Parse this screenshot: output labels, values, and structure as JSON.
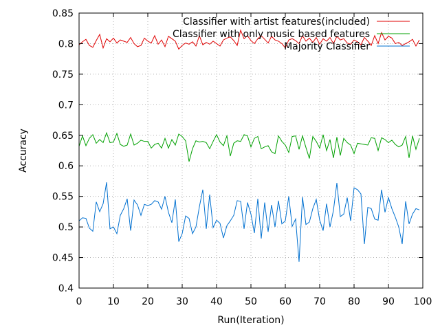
{
  "chart_data": {
    "type": "line",
    "title": "",
    "xlabel": "Run(Iteration)",
    "ylabel": "Accuracy",
    "xlim": [
      0,
      100
    ],
    "ylim": [
      0.4,
      0.85
    ],
    "xticks": [
      0,
      10,
      20,
      30,
      40,
      50,
      60,
      70,
      80,
      90,
      100
    ],
    "yticks": [
      0.4,
      0.45,
      0.5,
      0.55,
      0.6,
      0.65,
      0.7,
      0.75,
      0.8,
      0.85
    ],
    "xtick_labels": [
      "0",
      "10",
      "20",
      "30",
      "40",
      "50",
      "60",
      "70",
      "80",
      "90",
      "100"
    ],
    "ytick_labels": [
      "0.4",
      "0.45",
      "0.5",
      "0.55",
      "0.6",
      "0.65",
      "0.7",
      "0.75",
      "0.8",
      "0.85"
    ],
    "grid": true,
    "legend_position": "top-right",
    "series": [
      {
        "name": "Classifier with artist features(included)",
        "color": "#e00000",
        "x": [
          0,
          1,
          2,
          3,
          4,
          5,
          6,
          7,
          8,
          9,
          10,
          11,
          12,
          13,
          14,
          15,
          16,
          17,
          18,
          19,
          20,
          21,
          22,
          23,
          24,
          25,
          26,
          27,
          28,
          29,
          30,
          31,
          32,
          33,
          34,
          35,
          36,
          37,
          38,
          39,
          40,
          41,
          42,
          43,
          44,
          45,
          46,
          47,
          48,
          49,
          50,
          51,
          52,
          53,
          54,
          55,
          56,
          57,
          58,
          59,
          60,
          61,
          62,
          63,
          64,
          65,
          66,
          67,
          68,
          69,
          70,
          71,
          72,
          73,
          74,
          75,
          76,
          77,
          78,
          79,
          80,
          81,
          82,
          83,
          84,
          85,
          86,
          87,
          88,
          89,
          90,
          91,
          92,
          93,
          94,
          95,
          96,
          97,
          98,
          99
        ],
        "values": [
          0.798,
          0.803,
          0.807,
          0.797,
          0.794,
          0.805,
          0.815,
          0.793,
          0.808,
          0.803,
          0.809,
          0.801,
          0.806,
          0.804,
          0.802,
          0.81,
          0.8,
          0.795,
          0.797,
          0.809,
          0.804,
          0.801,
          0.813,
          0.799,
          0.806,
          0.795,
          0.812,
          0.808,
          0.804,
          0.791,
          0.797,
          0.801,
          0.799,
          0.803,
          0.796,
          0.813,
          0.798,
          0.802,
          0.799,
          0.804,
          0.8,
          0.796,
          0.806,
          0.809,
          0.811,
          0.805,
          0.797,
          0.822,
          0.808,
          0.813,
          0.805,
          0.8,
          0.808,
          0.813,
          0.807,
          0.801,
          0.812,
          0.806,
          0.804,
          0.8,
          0.793,
          0.806,
          0.808,
          0.805,
          0.8,
          0.813,
          0.804,
          0.809,
          0.802,
          0.81,
          0.799,
          0.808,
          0.804,
          0.81,
          0.8,
          0.812,
          0.806,
          0.808,
          0.801,
          0.799,
          0.806,
          0.803,
          0.798,
          0.81,
          0.804,
          0.797,
          0.813,
          0.8,
          0.818,
          0.806,
          0.812,
          0.809,
          0.8,
          0.802,
          0.797,
          0.8,
          0.803,
          0.807,
          0.796,
          0.806
        ]
      },
      {
        "name": "Classifier with only music based features",
        "color": "#00a000",
        "x": [
          0,
          1,
          2,
          3,
          4,
          5,
          6,
          7,
          8,
          9,
          10,
          11,
          12,
          13,
          14,
          15,
          16,
          17,
          18,
          19,
          20,
          21,
          22,
          23,
          24,
          25,
          26,
          27,
          28,
          29,
          30,
          31,
          32,
          33,
          34,
          35,
          36,
          37,
          38,
          39,
          40,
          41,
          42,
          43,
          44,
          45,
          46,
          47,
          48,
          49,
          50,
          51,
          52,
          53,
          54,
          55,
          56,
          57,
          58,
          59,
          60,
          61,
          62,
          63,
          64,
          65,
          66,
          67,
          68,
          69,
          70,
          71,
          72,
          73,
          74,
          75,
          76,
          77,
          78,
          79,
          80,
          81,
          82,
          83,
          84,
          85,
          86,
          87,
          88,
          89,
          90,
          91,
          92,
          93,
          94,
          95,
          96,
          97,
          98,
          99
        ],
        "values": [
          0.632,
          0.649,
          0.633,
          0.645,
          0.651,
          0.637,
          0.643,
          0.638,
          0.654,
          0.638,
          0.639,
          0.653,
          0.635,
          0.632,
          0.634,
          0.652,
          0.634,
          0.637,
          0.642,
          0.64,
          0.64,
          0.629,
          0.635,
          0.637,
          0.629,
          0.645,
          0.629,
          0.643,
          0.634,
          0.652,
          0.648,
          0.641,
          0.607,
          0.628,
          0.641,
          0.639,
          0.64,
          0.638,
          0.628,
          0.64,
          0.651,
          0.639,
          0.633,
          0.649,
          0.616,
          0.637,
          0.641,
          0.64,
          0.651,
          0.649,
          0.631,
          0.645,
          0.648,
          0.628,
          0.631,
          0.633,
          0.623,
          0.62,
          0.649,
          0.64,
          0.634,
          0.622,
          0.648,
          0.649,
          0.627,
          0.649,
          0.63,
          0.612,
          0.648,
          0.64,
          0.629,
          0.651,
          0.625,
          0.643,
          0.613,
          0.647,
          0.617,
          0.645,
          0.638,
          0.634,
          0.62,
          0.637,
          0.636,
          0.635,
          0.634,
          0.646,
          0.645,
          0.625,
          0.646,
          0.643,
          0.638,
          0.642,
          0.635,
          0.631,
          0.634,
          0.648,
          0.613,
          0.649,
          0.627,
          0.645
        ]
      },
      {
        "name": "Majority Classifier",
        "color": "#0070d0",
        "x": [
          0,
          1,
          2,
          3,
          4,
          5,
          6,
          7,
          8,
          9,
          10,
          11,
          12,
          13,
          14,
          15,
          16,
          17,
          18,
          19,
          20,
          21,
          22,
          23,
          24,
          25,
          26,
          27,
          28,
          29,
          30,
          31,
          32,
          33,
          34,
          35,
          36,
          37,
          38,
          39,
          40,
          41,
          42,
          43,
          44,
          45,
          46,
          47,
          48,
          49,
          50,
          51,
          52,
          53,
          54,
          55,
          56,
          57,
          58,
          59,
          60,
          61,
          62,
          63,
          64,
          65,
          66,
          67,
          68,
          69,
          70,
          71,
          72,
          73,
          74,
          75,
          76,
          77,
          78,
          79,
          80,
          81,
          82,
          83,
          84,
          85,
          86,
          87,
          88,
          89,
          90,
          91,
          92,
          93,
          94,
          95,
          96,
          97,
          98,
          99
        ],
        "values": [
          0.51,
          0.515,
          0.514,
          0.498,
          0.493,
          0.541,
          0.525,
          0.538,
          0.573,
          0.497,
          0.5,
          0.489,
          0.519,
          0.53,
          0.546,
          0.494,
          0.544,
          0.536,
          0.519,
          0.537,
          0.535,
          0.537,
          0.543,
          0.541,
          0.529,
          0.55,
          0.524,
          0.507,
          0.545,
          0.476,
          0.489,
          0.518,
          0.514,
          0.489,
          0.5,
          0.533,
          0.561,
          0.497,
          0.553,
          0.499,
          0.511,
          0.506,
          0.482,
          0.502,
          0.51,
          0.519,
          0.543,
          0.542,
          0.497,
          0.54,
          0.521,
          0.49,
          0.546,
          0.481,
          0.54,
          0.492,
          0.536,
          0.5,
          0.543,
          0.505,
          0.51,
          0.55,
          0.501,
          0.513,
          0.443,
          0.549,
          0.504,
          0.508,
          0.53,
          0.545,
          0.511,
          0.494,
          0.538,
          0.5,
          0.527,
          0.572,
          0.517,
          0.521,
          0.548,
          0.51,
          0.564,
          0.561,
          0.554,
          0.472,
          0.532,
          0.53,
          0.513,
          0.511,
          0.561,
          0.524,
          0.548,
          0.53,
          0.516,
          0.5,
          0.472,
          0.542,
          0.505,
          0.521,
          0.53,
          0.528
        ]
      }
    ]
  }
}
